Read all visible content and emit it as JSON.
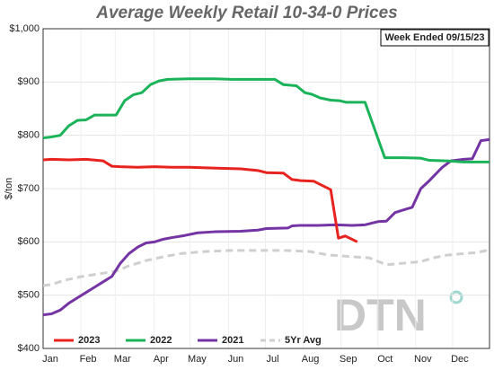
{
  "chart_data": {
    "type": "line",
    "title": "Average Weekly Retail 10-34-0 Prices",
    "annotation": "Week Ended 09/15/23",
    "y_label": "$/ton",
    "watermark": "DTN",
    "xlim": [
      0,
      52
    ],
    "xticks": [
      {
        "value": 0,
        "label": "Jan"
      },
      {
        "value": 4.4,
        "label": "Feb"
      },
      {
        "value": 8.4,
        "label": "Mar"
      },
      {
        "value": 12.9,
        "label": "Apr"
      },
      {
        "value": 17.1,
        "label": "May"
      },
      {
        "value": 21.6,
        "label": "Jun"
      },
      {
        "value": 25.9,
        "label": "Jul"
      },
      {
        "value": 30.3,
        "label": "Aug"
      },
      {
        "value": 34.7,
        "label": "Sep"
      },
      {
        "value": 39,
        "label": "Oct"
      },
      {
        "value": 43.4,
        "label": "Nov"
      },
      {
        "value": 47.7,
        "label": "Dec"
      }
    ],
    "ylim": [
      400,
      1000
    ],
    "yticks": [
      {
        "value": 400,
        "label": "$400"
      },
      {
        "value": 500,
        "label": "$500"
      },
      {
        "value": 600,
        "label": "$600"
      },
      {
        "value": 700,
        "label": "$700"
      },
      {
        "value": 800,
        "label": "$800"
      },
      {
        "value": 900,
        "label": "$900"
      },
      {
        "value": 1000,
        "label": "$1,000"
      }
    ],
    "grid": true,
    "series": [
      {
        "name": "2023",
        "color": "#e8231f",
        "dash": false,
        "x": [
          0,
          1,
          3,
          5,
          7,
          8,
          9,
          11,
          13,
          15,
          17,
          19,
          21,
          23,
          25,
          26,
          28,
          29,
          30,
          31.5,
          33.5,
          34.4,
          35.2,
          36.6
        ],
        "values": [
          754,
          755,
          754,
          755,
          752,
          742,
          741,
          740,
          741,
          740,
          740,
          739,
          738,
          737,
          734,
          730,
          729,
          717,
          715,
          714,
          698,
          607,
          611,
          600
        ]
      },
      {
        "name": "2022",
        "color": "#1bb35a",
        "dash": false,
        "x": [
          0,
          1,
          2,
          3,
          4,
          5,
          6,
          7,
          8.5,
          9.5,
          10.5,
          11.5,
          12.5,
          13.5,
          14.5,
          17,
          20,
          22,
          24,
          27,
          28,
          29.5,
          30.5,
          31.3,
          32.3,
          33.5,
          34.5,
          35.3,
          37.5,
          39.8,
          42,
          44,
          45,
          47,
          49,
          52
        ],
        "values": [
          795,
          797,
          800,
          818,
          828,
          829,
          838,
          838,
          838,
          865,
          876,
          880,
          895,
          902,
          905,
          906,
          906,
          905,
          905,
          905,
          895,
          893,
          880,
          877,
          870,
          866,
          865,
          862,
          862,
          758,
          758,
          757,
          753,
          752,
          750,
          750
        ]
      },
      {
        "name": "2021",
        "color": "#7434a4",
        "dash": false,
        "x": [
          0,
          1,
          2,
          3,
          4,
          5,
          6,
          7,
          8,
          9,
          10,
          11,
          12,
          13,
          14,
          15,
          16.5,
          18,
          20,
          23,
          25,
          26,
          28.5,
          29,
          30,
          32,
          34,
          36,
          37.5,
          39,
          40,
          41,
          42,
          43,
          44,
          45,
          46.5,
          47.5,
          49,
          50,
          51,
          52
        ],
        "values": [
          463,
          465,
          472,
          485,
          495,
          505,
          515,
          525,
          535,
          560,
          578,
          590,
          598,
          600,
          605,
          608,
          612,
          617,
          619,
          620,
          622,
          625,
          626,
          630,
          631,
          631,
          632,
          631,
          632,
          638,
          639,
          655,
          660,
          665,
          700,
          715,
          740,
          752,
          755,
          756,
          790,
          792
        ]
      },
      {
        "name": "5Yr Avg",
        "color": "#cfcfcf",
        "dash": true,
        "x": [
          0,
          1,
          2.5,
          4.5,
          6.5,
          8.5,
          10,
          12,
          14,
          16,
          19,
          22,
          28,
          31,
          33,
          36,
          38,
          40,
          42,
          44,
          45.5,
          47,
          49,
          50.5,
          52
        ],
        "values": [
          518,
          520,
          528,
          535,
          540,
          545,
          555,
          565,
          572,
          578,
          582,
          584,
          584,
          582,
          576,
          572,
          570,
          557,
          560,
          563,
          570,
          575,
          578,
          580,
          585
        ]
      }
    ]
  }
}
